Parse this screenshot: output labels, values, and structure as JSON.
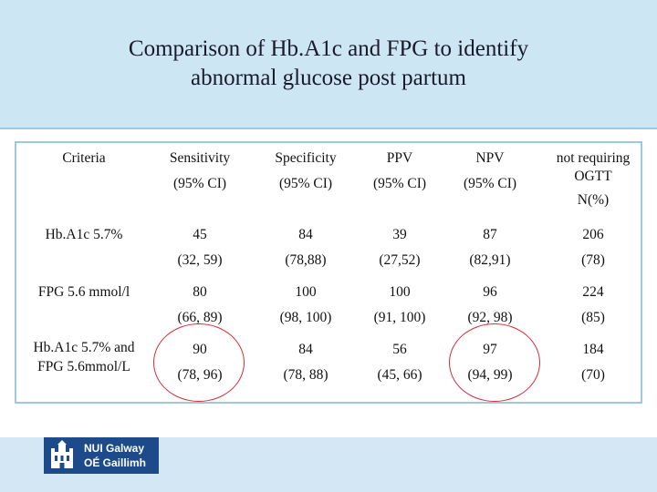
{
  "title": {
    "line1": "Comparison of Hb.A1c  and FPG to identify",
    "line2": "abnormal glucose post partum"
  },
  "table": {
    "header": {
      "criteria": "Criteria",
      "sensitivity": "Sensitivity",
      "sensitivity_ci": "(95% CI)",
      "specificity": "Specificity",
      "specificity_ci": "(95% CI)",
      "ppv": "PPV",
      "ppv_ci": "(95% CI)",
      "npv": "NPV",
      "npv_ci": "(95% CI)",
      "ogtt_line1": "not requiring",
      "ogtt_line2": "OGTT",
      "ogtt_line3": "N(%)"
    },
    "rows": [
      {
        "label": "Hb.A1c 5.7%",
        "label_line2": "",
        "sensitivity": "45",
        "sensitivity_ci": "(32, 59)",
        "specificity": "84",
        "specificity_ci": "(78,88)",
        "ppv": "39",
        "ppv_ci": "(27,52)",
        "npv": "87",
        "npv_ci": "(82,91)",
        "ogtt": "206",
        "ogtt_pct": "(78)"
      },
      {
        "label": "FPG 5.6 mmol/l",
        "label_line2": "",
        "sensitivity": "80",
        "sensitivity_ci": "(66, 89)",
        "specificity": "100",
        "specificity_ci": "(98, 100)",
        "ppv": "100",
        "ppv_ci": "(91, 100)",
        "npv": "96",
        "npv_ci": "(92, 98)",
        "ogtt": "224",
        "ogtt_pct": "(85)"
      },
      {
        "label": "Hb.A1c 5.7% and",
        "label_line2": "FPG 5.6mmol/L",
        "sensitivity": "90",
        "sensitivity_ci": "(78, 96)",
        "specificity": "84",
        "specificity_ci": "(78, 88)",
        "ppv": "56",
        "ppv_ci": "(45, 66)",
        "npv": "97",
        "npv_ci": "(94, 99)",
        "ogtt": "184",
        "ogtt_pct": "(70)"
      }
    ]
  },
  "footer": {
    "logo_line1": "NUI Galway",
    "logo_line2": "OÉ Gaillimh"
  },
  "colors": {
    "title_band": "#cde6f3",
    "circle": "#d42a3a",
    "logo": "#1d4a8a"
  }
}
